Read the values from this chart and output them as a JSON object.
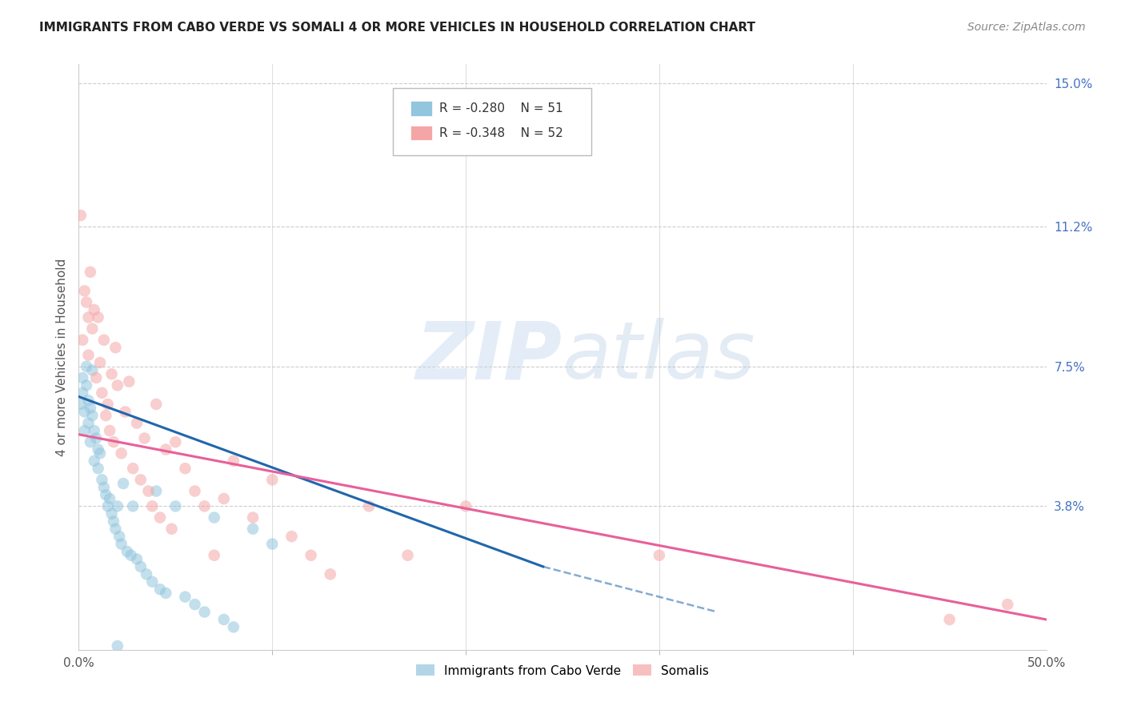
{
  "title": "IMMIGRANTS FROM CABO VERDE VS SOMALI 4 OR MORE VEHICLES IN HOUSEHOLD CORRELATION CHART",
  "source": "Source: ZipAtlas.com",
  "ylabel": "4 or more Vehicles in Household",
  "xlim": [
    0.0,
    0.5
  ],
  "ylim": [
    0.0,
    0.155
  ],
  "xticklabels_pos": [
    0.0,
    0.5
  ],
  "xticklabels": [
    "0.0%",
    "50.0%"
  ],
  "yticks_right": [
    0.038,
    0.075,
    0.112,
    0.15
  ],
  "yticks_right_labels": [
    "3.8%",
    "7.5%",
    "11.2%",
    "15.0%"
  ],
  "xtick_minor": [
    0.1,
    0.2,
    0.3,
    0.4
  ],
  "legend_labels": [
    "Immigrants from Cabo Verde",
    "Somalis"
  ],
  "legend_r": [
    "R = -0.280",
    "N = 51"
  ],
  "legend_r2": [
    "R = -0.348",
    "N = 52"
  ],
  "blue_color": "#92c5de",
  "pink_color": "#f4a6a6",
  "blue_line_color": "#2166ac",
  "pink_line_color": "#e8609a",
  "watermark_zip": "ZIP",
  "watermark_atlas": "atlas",
  "cabo_verde_x": [
    0.001,
    0.002,
    0.002,
    0.003,
    0.003,
    0.004,
    0.004,
    0.005,
    0.005,
    0.006,
    0.006,
    0.007,
    0.007,
    0.008,
    0.008,
    0.009,
    0.01,
    0.01,
    0.011,
    0.012,
    0.013,
    0.014,
    0.015,
    0.016,
    0.017,
    0.018,
    0.019,
    0.02,
    0.021,
    0.022,
    0.023,
    0.025,
    0.027,
    0.028,
    0.03,
    0.032,
    0.035,
    0.038,
    0.04,
    0.042,
    0.045,
    0.05,
    0.055,
    0.06,
    0.065,
    0.07,
    0.075,
    0.08,
    0.09,
    0.1,
    0.02
  ],
  "cabo_verde_y": [
    0.065,
    0.072,
    0.068,
    0.063,
    0.058,
    0.07,
    0.075,
    0.066,
    0.06,
    0.064,
    0.055,
    0.074,
    0.062,
    0.058,
    0.05,
    0.056,
    0.053,
    0.048,
    0.052,
    0.045,
    0.043,
    0.041,
    0.038,
    0.04,
    0.036,
    0.034,
    0.032,
    0.038,
    0.03,
    0.028,
    0.044,
    0.026,
    0.025,
    0.038,
    0.024,
    0.022,
    0.02,
    0.018,
    0.042,
    0.016,
    0.015,
    0.038,
    0.014,
    0.012,
    0.01,
    0.035,
    0.008,
    0.006,
    0.032,
    0.028,
    0.001
  ],
  "somali_x": [
    0.001,
    0.002,
    0.003,
    0.004,
    0.005,
    0.005,
    0.006,
    0.007,
    0.008,
    0.009,
    0.01,
    0.011,
    0.012,
    0.013,
    0.014,
    0.015,
    0.016,
    0.017,
    0.018,
    0.019,
    0.02,
    0.022,
    0.024,
    0.026,
    0.028,
    0.03,
    0.032,
    0.034,
    0.036,
    0.038,
    0.04,
    0.042,
    0.045,
    0.048,
    0.05,
    0.055,
    0.06,
    0.065,
    0.07,
    0.075,
    0.08,
    0.09,
    0.1,
    0.11,
    0.12,
    0.13,
    0.15,
    0.17,
    0.2,
    0.3,
    0.48,
    0.45
  ],
  "somali_y": [
    0.115,
    0.082,
    0.095,
    0.092,
    0.078,
    0.088,
    0.1,
    0.085,
    0.09,
    0.072,
    0.088,
    0.076,
    0.068,
    0.082,
    0.062,
    0.065,
    0.058,
    0.073,
    0.055,
    0.08,
    0.07,
    0.052,
    0.063,
    0.071,
    0.048,
    0.06,
    0.045,
    0.056,
    0.042,
    0.038,
    0.065,
    0.035,
    0.053,
    0.032,
    0.055,
    0.048,
    0.042,
    0.038,
    0.025,
    0.04,
    0.05,
    0.035,
    0.045,
    0.03,
    0.025,
    0.02,
    0.038,
    0.025,
    0.038,
    0.025,
    0.012,
    0.008
  ]
}
